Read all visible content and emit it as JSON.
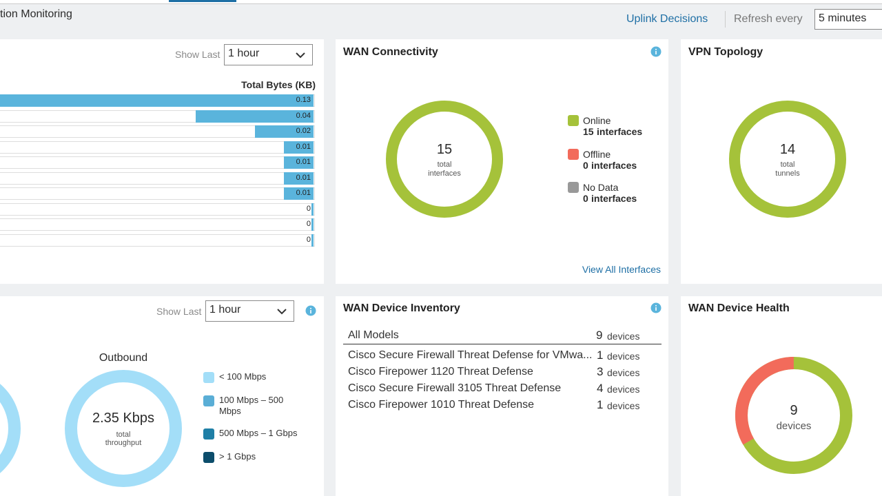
{
  "header": {
    "title": "tion Monitoring",
    "uplink_link": "Uplink Decisions",
    "refresh_label": "Refresh every",
    "refresh_value": "5 minutes"
  },
  "traffic_panel": {
    "show_last_label": "Show Last",
    "show_last_value": "1 hour",
    "column_header": "Total Bytes (KB)",
    "values": [
      0.13,
      0.04,
      0.02,
      0.01,
      0.01,
      0.01,
      0.01,
      0,
      0,
      0
    ],
    "color": "#5ab4dc"
  },
  "wan_connectivity": {
    "title": "WAN Connectivity",
    "total": 15,
    "total_label": [
      "total",
      "interfaces"
    ],
    "legend": [
      {
        "name": "Online",
        "count": 15,
        "unit": "interfaces",
        "color": "#a5c23a"
      },
      {
        "name": "Offline",
        "count": 0,
        "unit": "interfaces",
        "color": "#f26b5b"
      },
      {
        "name": "No Data",
        "count": 0,
        "unit": "interfaces",
        "color": "#999999"
      }
    ],
    "link": "View All Interfaces"
  },
  "vpn_topology": {
    "title": "VPN Topology",
    "total": 14,
    "total_label": [
      "total",
      "tunnels"
    ],
    "color": "#a5c23a"
  },
  "throughput_panel": {
    "show_last_label": "Show Last",
    "show_last_value": "1 hour",
    "outbound_title": "Outbound",
    "total": "2.35 Kbps",
    "total_label": [
      "total",
      "throughput"
    ],
    "legend": [
      {
        "name": "< 100 Mbps",
        "color": "#a3def8"
      },
      {
        "name": "100 Mbps – 500 Mbps",
        "color": "#5aaed6"
      },
      {
        "name": "500 Mbps – 1 Gbps",
        "color": "#1f7fa6"
      },
      {
        "name": "> 1 Gbps",
        "color": "#0c4d6b"
      }
    ]
  },
  "wan_device_inventory": {
    "title": "WAN Device Inventory",
    "header": {
      "model": "All Models",
      "count": 9,
      "unit": "devices"
    },
    "rows": [
      {
        "model": "Cisco Secure Firewall Threat Defense for VMwa...",
        "count": 1,
        "unit": "devices"
      },
      {
        "model": "Cisco Firepower 1120 Threat Defense",
        "count": 3,
        "unit": "devices"
      },
      {
        "model": "Cisco Secure Firewall 3105 Threat Defense",
        "count": 4,
        "unit": "devices"
      },
      {
        "model": "Cisco Firepower 1010 Threat Defense",
        "count": 1,
        "unit": "devices"
      }
    ]
  },
  "wan_device_health": {
    "title": "WAN Device Health",
    "total": 9,
    "total_label": "devices"
  }
}
